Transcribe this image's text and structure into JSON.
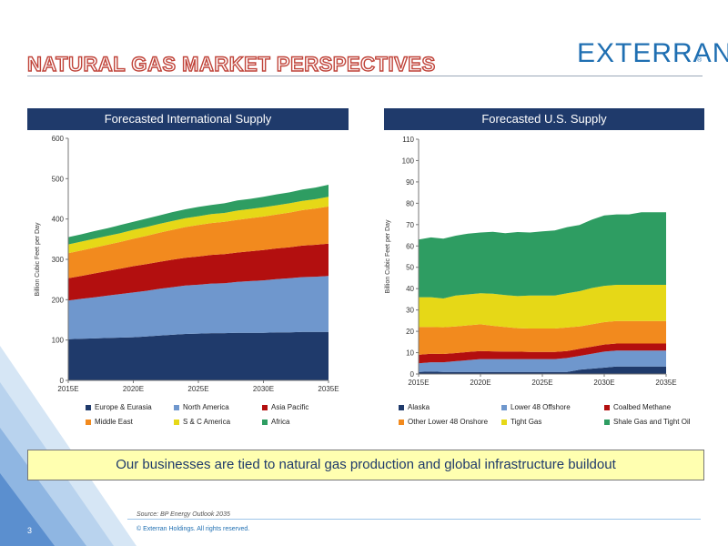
{
  "header": {
    "title": "NATURAL GAS MARKET PERSPECTIVES",
    "logo_text": "EXTERRAN",
    "logo_mark": "®",
    "colors": {
      "title_outline": "#c0443a",
      "logo": "#1f6fb2",
      "panel_header": "#1f3a6b"
    }
  },
  "banner": {
    "text": "Our businesses are tied to natural gas production and global infrastructure buildout"
  },
  "footer": {
    "source": "Source: BP Energy Outlook 2035",
    "copyright": "© Exterran Holdings. All rights reserved.",
    "page_number": "3"
  },
  "chart_data": [
    {
      "type": "area",
      "stacked": true,
      "title": "Forecasted International Supply",
      "ylabel": "Billion Cubic Feet per Day",
      "xlabel": "",
      "ylim": [
        0,
        600
      ],
      "yticks": [
        0,
        100,
        200,
        300,
        400,
        500,
        600
      ],
      "x": [
        2015,
        2016,
        2017,
        2018,
        2019,
        2020,
        2021,
        2022,
        2023,
        2024,
        2025,
        2026,
        2027,
        2028,
        2029,
        2030,
        2031,
        2032,
        2033,
        2034,
        2035
      ],
      "xtick_labels": [
        "2015E",
        "2020E",
        "2025E",
        "2030E",
        "2035E"
      ],
      "xtick_values": [
        2015,
        2020,
        2025,
        2030,
        2035
      ],
      "grid": false,
      "legend_position": "bottom",
      "series": [
        {
          "name": "Europe & Eurasia",
          "color": "#1f3a6b",
          "values": [
            102,
            103,
            104,
            105,
            106,
            107,
            109,
            111,
            113,
            115,
            116,
            117,
            117,
            118,
            118,
            118,
            119,
            119,
            120,
            120,
            120
          ]
        },
        {
          "name": "North America",
          "color": "#6f97cd",
          "values": [
            96,
            99,
            102,
            105,
            108,
            111,
            113,
            116,
            118,
            120,
            121,
            123,
            124,
            126,
            128,
            130,
            132,
            134,
            136,
            137,
            139
          ]
        },
        {
          "name": "Asia Pacific",
          "color": "#b30f0f",
          "values": [
            55,
            57,
            59,
            61,
            63,
            65,
            66,
            67,
            68,
            69,
            70,
            71,
            72,
            73,
            74,
            75,
            76,
            77,
            78,
            79,
            80
          ]
        },
        {
          "name": "Middle East",
          "color": "#f28a1e",
          "values": [
            62,
            63,
            64,
            65,
            66,
            68,
            70,
            72,
            74,
            76,
            78,
            79,
            80,
            81,
            82,
            83,
            84,
            86,
            88,
            90,
            92
          ]
        },
        {
          "name": "S & C America",
          "color": "#e6d817",
          "values": [
            22,
            22,
            22,
            22,
            22,
            22,
            22,
            22,
            22,
            22,
            22,
            22,
            22,
            23,
            23,
            23,
            23,
            23,
            23,
            23,
            24
          ]
        },
        {
          "name": "Africa",
          "color": "#2e9d62",
          "values": [
            18,
            18,
            19,
            19,
            20,
            20,
            21,
            21,
            22,
            22,
            23,
            23,
            24,
            25,
            25,
            26,
            27,
            27,
            28,
            29,
            30
          ]
        }
      ]
    },
    {
      "type": "area",
      "stacked": true,
      "title": "Forecasted U.S. Supply",
      "ylabel": "Billion Cubic Feet per Day",
      "xlabel": "",
      "ylim": [
        0,
        110
      ],
      "yticks": [
        0,
        10,
        20,
        30,
        40,
        50,
        60,
        70,
        80,
        90,
        100,
        110
      ],
      "x": [
        2015,
        2016,
        2017,
        2018,
        2019,
        2020,
        2021,
        2022,
        2023,
        2024,
        2025,
        2026,
        2027,
        2028,
        2029,
        2030,
        2031,
        2032,
        2033,
        2034,
        2035
      ],
      "xtick_labels": [
        "2015E",
        "2020E",
        "2025E",
        "2030E",
        "2035E"
      ],
      "xtick_values": [
        2015,
        2020,
        2025,
        2030,
        2035
      ],
      "grid": false,
      "legend_position": "bottom",
      "series": [
        {
          "name": "Alaska",
          "color": "#1f3a6b",
          "values": [
            1,
            1.2,
            1,
            1,
            1,
            1,
            1,
            1,
            1,
            1,
            1,
            1,
            1,
            2,
            2.5,
            3,
            3.5,
            3.5,
            3.5,
            3.5,
            3.5
          ]
        },
        {
          "name": "Lower 48 Offshore",
          "color": "#6f97cd",
          "values": [
            4,
            4.3,
            4.5,
            5,
            5.5,
            6,
            6,
            6,
            6,
            6,
            6,
            6,
            6.5,
            6.5,
            7,
            7.5,
            7.5,
            7.5,
            7.5,
            7.5,
            7.5
          ]
        },
        {
          "name": "Coalbed Methane",
          "color": "#b30f0f",
          "values": [
            4,
            4,
            3.9,
            3.8,
            3.8,
            3.8,
            3.6,
            3.5,
            3.5,
            3.3,
            3.3,
            3.3,
            3.3,
            3.3,
            3.3,
            3.3,
            3.3,
            3.3,
            3.3,
            3.3,
            3.3
          ]
        },
        {
          "name": "Other Lower 48 Onshore",
          "color": "#f28a1e",
          "values": [
            13,
            12.5,
            12.5,
            12.5,
            12.5,
            12.5,
            12,
            11.5,
            11,
            11,
            11,
            11,
            11,
            10.5,
            10.5,
            10.5,
            10.5,
            10.5,
            10.5,
            10.5,
            10.5
          ]
        },
        {
          "name": "Tight Gas",
          "color": "#e6d817",
          "values": [
            14,
            14,
            13.5,
            14.5,
            14.5,
            14.5,
            15,
            15,
            15,
            15.5,
            15.5,
            15.5,
            16,
            16.5,
            17,
            17,
            17,
            17,
            17,
            17,
            17
          ]
        },
        {
          "name": "Shale Gas and Tight Oil",
          "color": "#2e9d62",
          "values": [
            27,
            28,
            28,
            28,
            28.5,
            28.5,
            29,
            29,
            30,
            29.5,
            30,
            30.5,
            31,
            31,
            32,
            33,
            33,
            33,
            34,
            34,
            34
          ]
        }
      ]
    }
  ]
}
